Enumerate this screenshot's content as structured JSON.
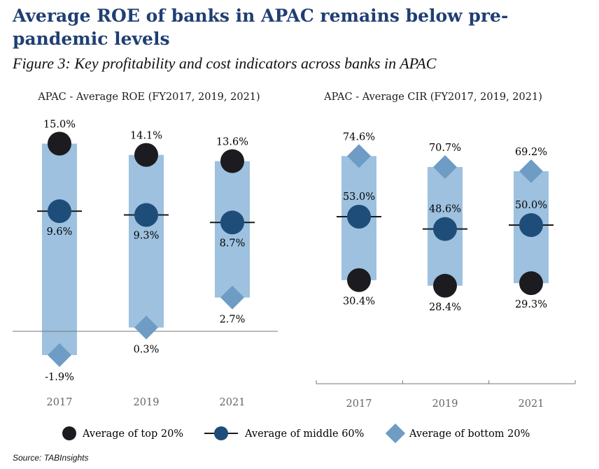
{
  "header": {
    "title": "Average ROE of banks in APAC remains below pre-pandemic levels",
    "subtitle": "Figure 3: Key profitability and cost indicators across banks in APAC"
  },
  "source": "Source: TABInsights",
  "colors": {
    "title": "#1f3f73",
    "bar": "#9dc1df",
    "top": "#1c1b1f",
    "middle": "#1f4d7a",
    "bottom": "#6e9cc5",
    "axis": "#777777",
    "year_label": "#666666"
  },
  "legend": {
    "top": "Average of top 20%",
    "middle": "Average of middle 60%",
    "bottom": "Average of bottom 20%"
  },
  "chart_data": [
    {
      "type": "range",
      "title": "APAC - Average ROE (FY2017, 2019, 2021)",
      "categories": [
        "2017",
        "2019",
        "2021"
      ],
      "series": [
        {
          "name": "Average of top 20%",
          "values": [
            15.0,
            14.1,
            13.6
          ],
          "labels": [
            "15.0%",
            "14.1%",
            "13.6%"
          ]
        },
        {
          "name": "Average of middle 60%",
          "values": [
            9.6,
            9.3,
            8.7
          ],
          "labels": [
            "9.6%",
            "9.3%",
            "8.7%"
          ]
        },
        {
          "name": "Average of bottom 20%",
          "values": [
            -1.9,
            0.3,
            2.7
          ],
          "labels": [
            "-1.9%",
            "0.3%",
            "2.7%"
          ]
        }
      ],
      "zero_line": true
    },
    {
      "type": "range",
      "title": "APAC - Average CIR (FY2017, 2019, 2021)",
      "categories": [
        "2017",
        "2019",
        "2021"
      ],
      "series": [
        {
          "name": "Average of top 20%",
          "values": [
            30.4,
            28.4,
            29.3
          ],
          "labels": [
            "30.4%",
            "28.4%",
            "29.3%"
          ]
        },
        {
          "name": "Average of middle 60%",
          "values": [
            53.0,
            48.6,
            50.0
          ],
          "labels": [
            "53.0%",
            "48.6%",
            "50.0%"
          ]
        },
        {
          "name": "Average of bottom 20%",
          "values": [
            74.6,
            70.7,
            69.2
          ],
          "labels": [
            "74.6%",
            "70.7%",
            "69.2%"
          ]
        }
      ],
      "zero_line": false
    }
  ]
}
